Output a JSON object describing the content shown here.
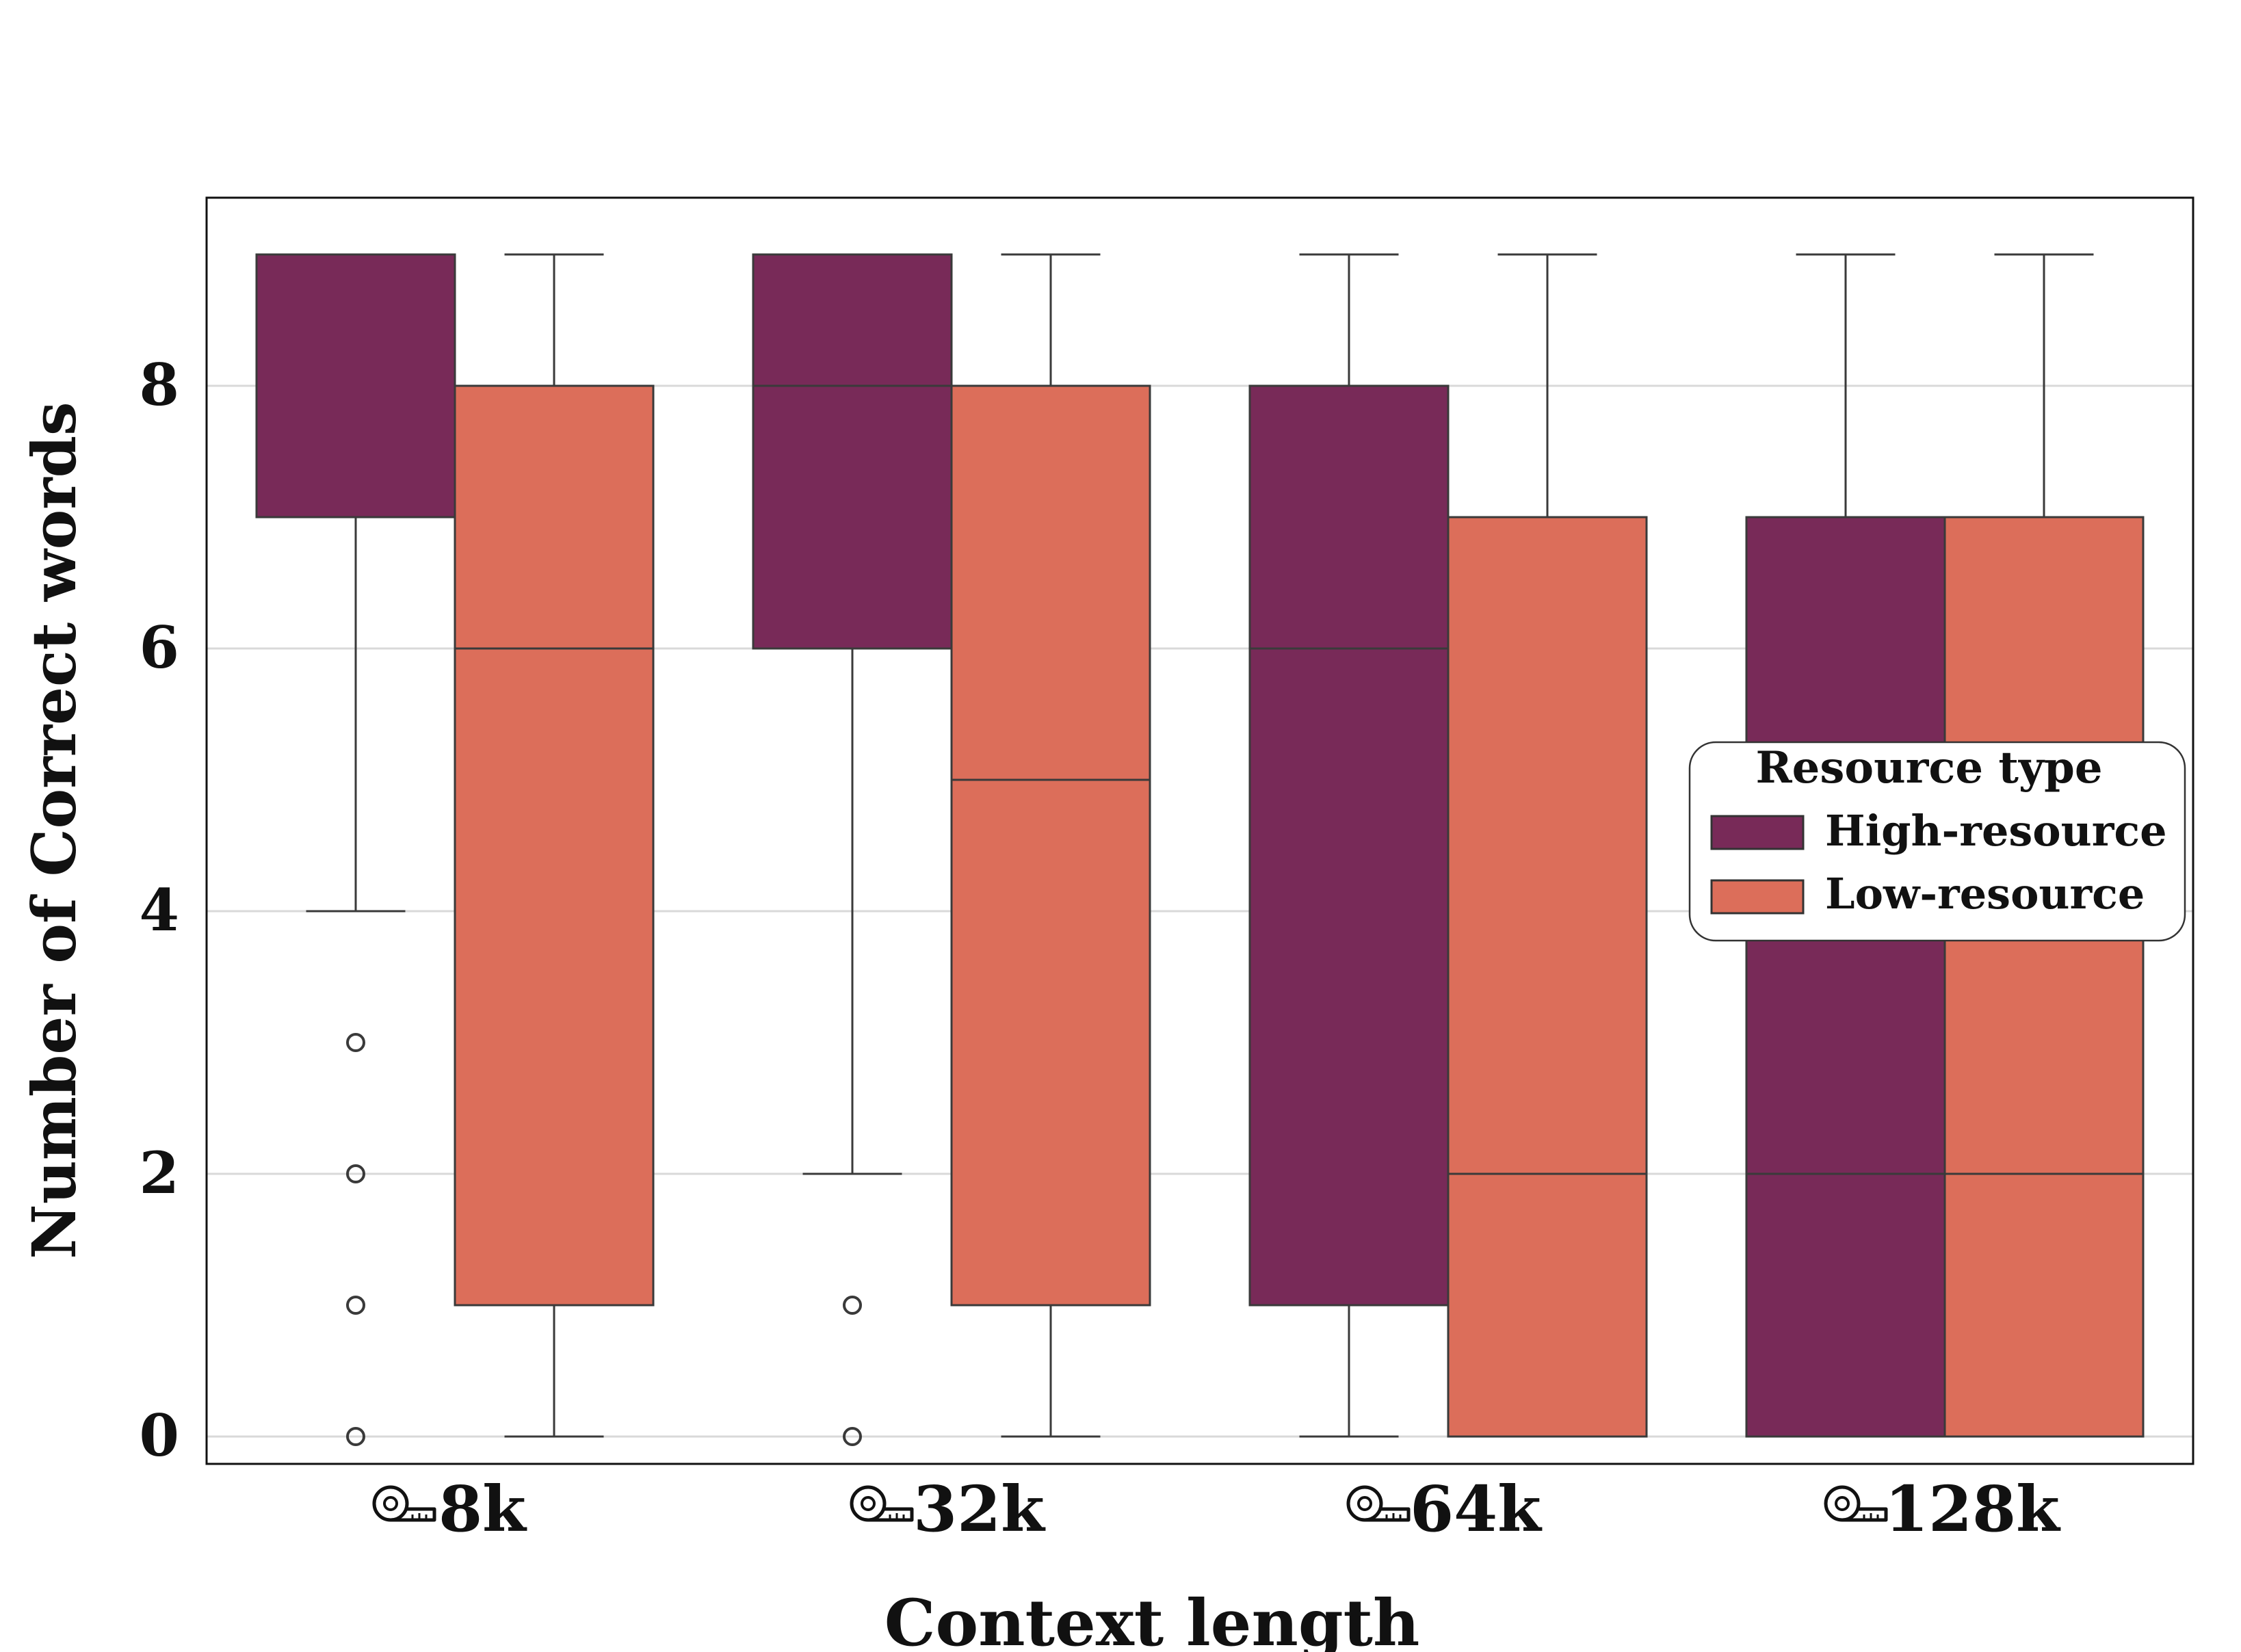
{
  "chart_data": {
    "type": "box",
    "xlabel": "Context length",
    "ylabel": "Number of Correct words",
    "categories": [
      "8k",
      "32k",
      "64k",
      "128k"
    ],
    "category_icon": "tape-measure-icon",
    "ylim": [
      -0.2,
      9.3
    ],
    "yticks": [
      0,
      2,
      4,
      6,
      8
    ],
    "grid": "horizontal",
    "legend": {
      "title": "Resource type",
      "placement": "center-right"
    },
    "series": [
      {
        "name": "High-resource",
        "color": "#782a58",
        "boxes": [
          {
            "category": "8k",
            "whisker_low": 4,
            "q1": 7,
            "median": 9,
            "q3": 9,
            "whisker_high": 9,
            "outliers": [
              0,
              1,
              2,
              3
            ]
          },
          {
            "category": "32k",
            "whisker_low": 2,
            "q1": 6,
            "median": 8,
            "q3": 9,
            "whisker_high": 9,
            "outliers": [
              0,
              1
            ]
          },
          {
            "category": "64k",
            "whisker_low": 0,
            "q1": 1,
            "median": 6,
            "q3": 8,
            "whisker_high": 9,
            "outliers": []
          },
          {
            "category": "128k",
            "whisker_low": 0,
            "q1": 0,
            "median": 2,
            "q3": 7,
            "whisker_high": 9,
            "outliers": []
          }
        ]
      },
      {
        "name": "Low-resource",
        "color": "#dc6e5a",
        "boxes": [
          {
            "category": "8k",
            "whisker_low": 0,
            "q1": 1,
            "median": 6,
            "q3": 8,
            "whisker_high": 9,
            "outliers": []
          },
          {
            "category": "32k",
            "whisker_low": 0,
            "q1": 1,
            "median": 5,
            "q3": 8,
            "whisker_high": 9,
            "outliers": []
          },
          {
            "category": "64k",
            "whisker_low": 0,
            "q1": 0,
            "median": 2,
            "q3": 7,
            "whisker_high": 9,
            "outliers": []
          },
          {
            "category": "128k",
            "whisker_low": 0,
            "q1": 0,
            "median": 2,
            "q3": 7,
            "whisker_high": 9,
            "outliers": []
          }
        ]
      }
    ]
  }
}
